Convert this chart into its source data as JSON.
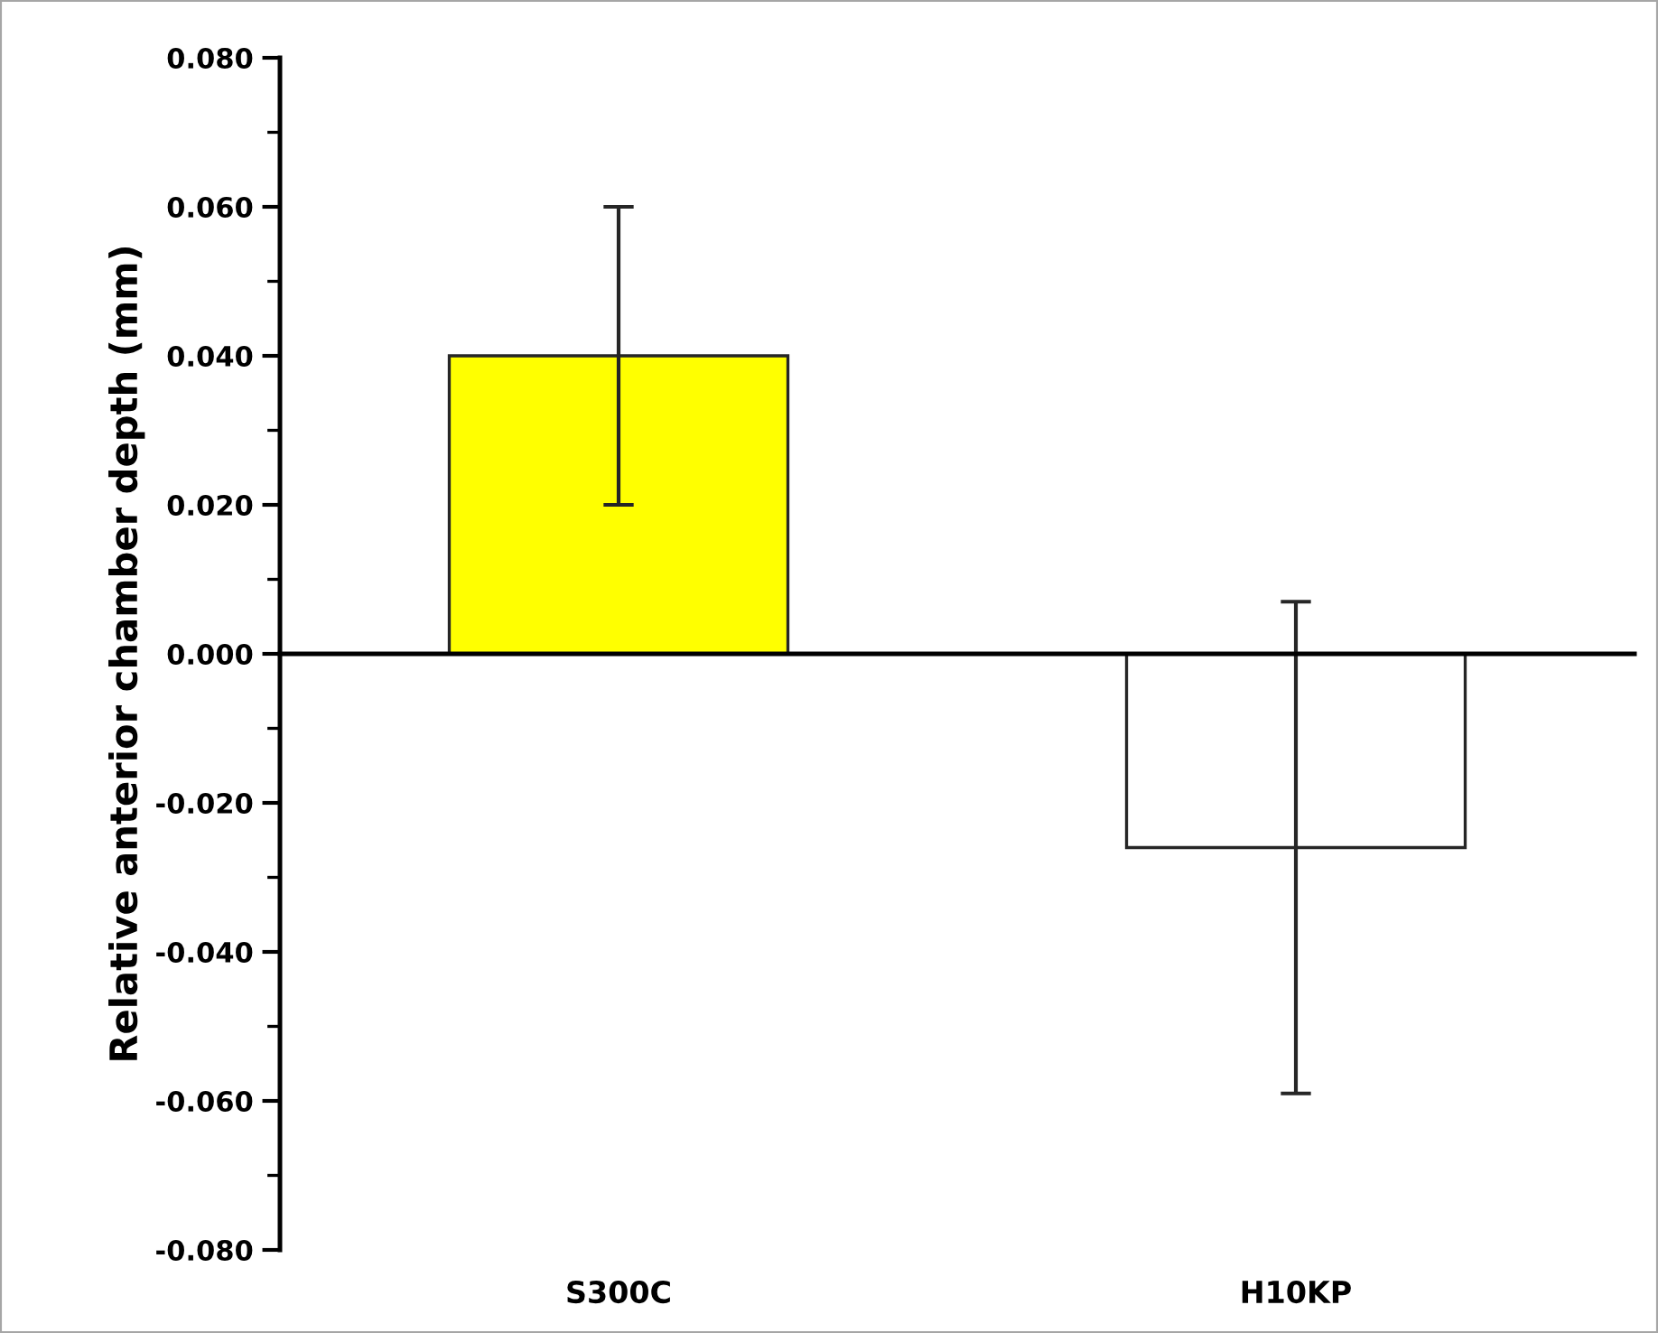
{
  "chart_data": {
    "type": "bar",
    "ylabel": "Relative anterior chamber depth (mm)",
    "categories": [
      "S300C",
      "H10KP"
    ],
    "values": [
      0.04,
      -0.026
    ],
    "errors": [
      0.02,
      0.033
    ],
    "colors": [
      "#ffff00",
      "#ffffff"
    ],
    "ylim": [
      -0.08,
      0.08
    ],
    "yticks": [
      {
        "value": -0.08,
        "label": "-0.080"
      },
      {
        "value": -0.06,
        "label": "-0.060"
      },
      {
        "value": -0.04,
        "label": "-0.040"
      },
      {
        "value": -0.02,
        "label": "-0.020"
      },
      {
        "value": 0,
        "label": "0.000"
      },
      {
        "value": 0.02,
        "label": "0.020"
      },
      {
        "value": 0.04,
        "label": "0.040"
      },
      {
        "value": 0.06,
        "label": "0.060"
      },
      {
        "value": 0.08,
        "label": "0.080"
      }
    ]
  }
}
